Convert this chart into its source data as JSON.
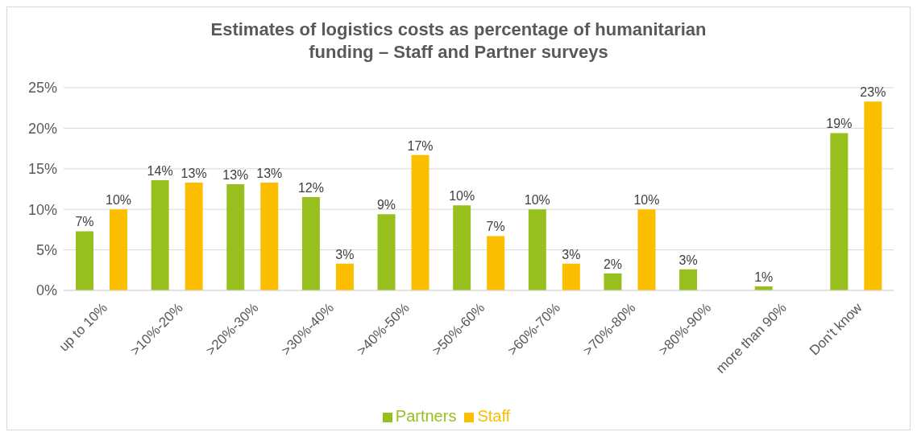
{
  "chart_data": {
    "type": "bar",
    "title": "Estimates of logistics costs as percentage of humanitarian funding – Staff and Partner surveys",
    "categories": [
      "up to 10%",
      ">10%-20%",
      ">20%-30%",
      ">30%-40%",
      ">40%-50%",
      ">50%-60%",
      ">60%-70%",
      ">70%-80%",
      ">80%-90%",
      "more than 90%",
      "Don't know"
    ],
    "series": [
      {
        "name": "Partners",
        "color": "#97c01f",
        "values": [
          7.3,
          13.6,
          13.1,
          11.5,
          9.4,
          10.5,
          10.0,
          2.1,
          2.6,
          0.5,
          19.4
        ],
        "value_labels": [
          "7%",
          "14%",
          "13%",
          "12%",
          "9%",
          "10%",
          "10%",
          "2%",
          "3%",
          "1%",
          "19%"
        ]
      },
      {
        "name": "Staff",
        "color": "#fbbf00",
        "values": [
          10.0,
          13.3,
          13.3,
          3.3,
          16.7,
          6.7,
          3.3,
          10.0,
          null,
          null,
          23.3
        ],
        "value_labels": [
          "10%",
          "13%",
          "13%",
          "3%",
          "17%",
          "7%",
          "3%",
          "10%",
          null,
          null,
          "23%"
        ]
      }
    ],
    "ylim": [
      0,
      25
    ],
    "yticks": [
      {
        "value": 0,
        "label": "0%"
      },
      {
        "value": 5,
        "label": "5%"
      },
      {
        "value": 10,
        "label": "10%"
      },
      {
        "value": 15,
        "label": "15%"
      },
      {
        "value": 20,
        "label": "20%"
      },
      {
        "value": 25,
        "label": "25%"
      }
    ],
    "grid": "y",
    "legend": "bottom"
  }
}
